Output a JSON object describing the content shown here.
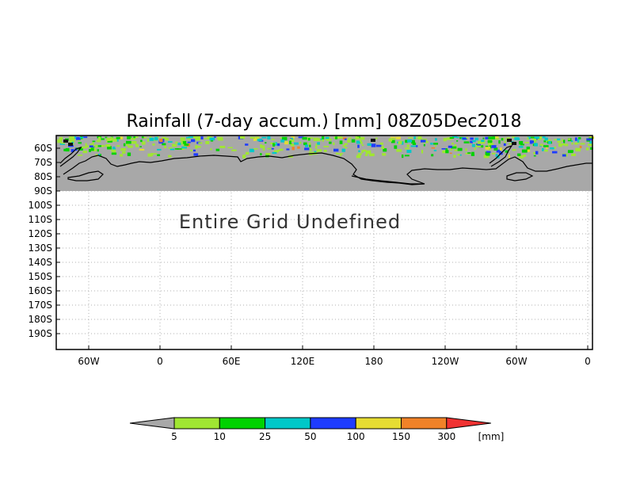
{
  "title": "Rainfall (7-day accum.) [mm] 08Z05Dec2018",
  "message": "Entire Grid Undefined",
  "lat_labels": [
    "60S",
    "70S",
    "80S",
    "90S",
    "100S",
    "110S",
    "120S",
    "130S",
    "140S",
    "150S",
    "160S",
    "170S",
    "180S",
    "190S"
  ],
  "lon_labels": [
    "60W",
    "0",
    "60E",
    "120E",
    "180",
    "120W",
    "60W",
    "0"
  ],
  "colorbar": {
    "labels": [
      "5",
      "10",
      "25",
      "50",
      "100",
      "150",
      "300"
    ],
    "unit": "[mm]",
    "below_color": "#a8a8a8",
    "colors": [
      "#a0e632",
      "#00d200",
      "#00c8c8",
      "#1e3cff",
      "#e6dc32",
      "#f08228"
    ],
    "above_color": "#f03232"
  },
  "colors": {
    "land": "#a8a8a8",
    "coast": "#000000",
    "grid": "#b0b0b0"
  }
}
